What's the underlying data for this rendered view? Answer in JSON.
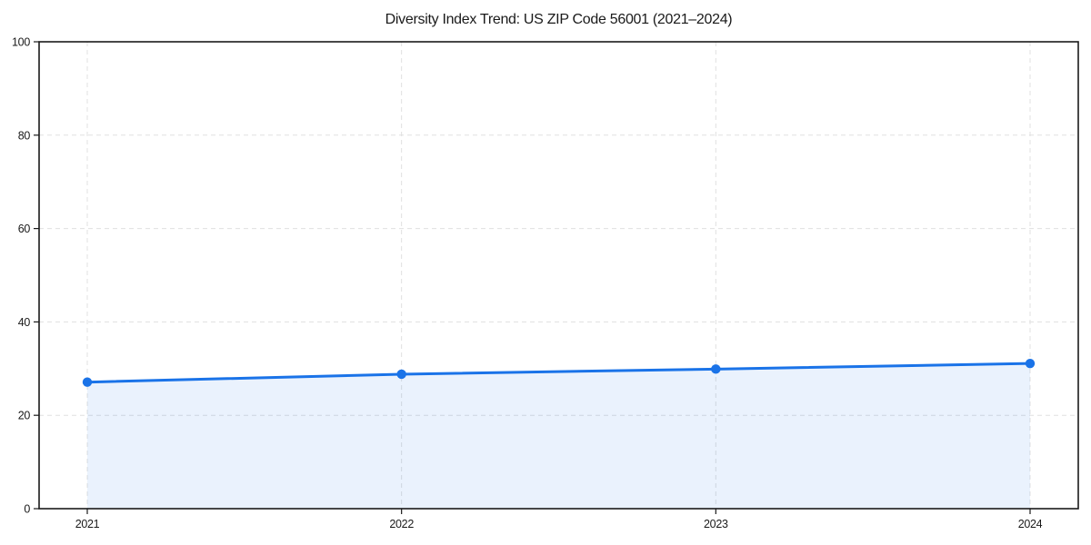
{
  "page": {
    "background": "#ffffff"
  },
  "chart_data": {
    "type": "line",
    "title": "Diversity Index Trend: US ZIP Code 56001 (2021–2024)",
    "x": [
      "2021",
      "2022",
      "2023",
      "2024"
    ],
    "series": [
      {
        "name": "Diversity Index",
        "values": [
          27.1,
          28.8,
          29.9,
          31.1
        ]
      }
    ],
    "xlabel": "",
    "ylabel": "",
    "ylim": [
      0,
      100
    ],
    "yticks": [
      0,
      20,
      40,
      60,
      80,
      100
    ],
    "grid": true,
    "grid_style": "dashed",
    "legend_position": "none",
    "area_fill": true,
    "marker": "circle",
    "colors": {
      "line": "#1a73e8",
      "fill": "#1a73e8",
      "fill_opacity": 0.09,
      "grid": "#e0e0e0",
      "spine": "#1a1a1a",
      "text": "#1a1a1a"
    }
  }
}
